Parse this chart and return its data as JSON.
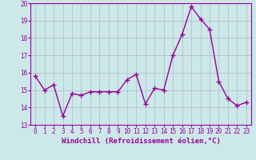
{
  "x": [
    0,
    1,
    2,
    3,
    4,
    5,
    6,
    7,
    8,
    9,
    10,
    11,
    12,
    13,
    14,
    15,
    16,
    17,
    18,
    19,
    20,
    21,
    22,
    23
  ],
  "y": [
    15.8,
    15.0,
    15.3,
    13.5,
    14.8,
    14.7,
    14.9,
    14.9,
    14.9,
    14.9,
    15.6,
    15.9,
    14.2,
    15.1,
    15.0,
    17.0,
    18.2,
    19.8,
    19.1,
    18.5,
    15.5,
    14.5,
    14.1,
    14.3
  ],
  "line_color": "#990099",
  "marker": "+",
  "markersize": 4,
  "linewidth": 1.0,
  "xlabel": "Windchill (Refroidissement éolien,°C)",
  "xlabel_fontsize": 6.5,
  "xlim": [
    -0.5,
    23.5
  ],
  "ylim": [
    13,
    20
  ],
  "yticks": [
    13,
    14,
    15,
    16,
    17,
    18,
    19,
    20
  ],
  "xticks": [
    0,
    1,
    2,
    3,
    4,
    5,
    6,
    7,
    8,
    9,
    10,
    11,
    12,
    13,
    14,
    15,
    16,
    17,
    18,
    19,
    20,
    21,
    22,
    23
  ],
  "tick_fontsize": 5.5,
  "background_color": "#cce8e8",
  "grid_color": "#aabbcc",
  "grid_linewidth": 0.5,
  "spine_color": "#9900aa"
}
